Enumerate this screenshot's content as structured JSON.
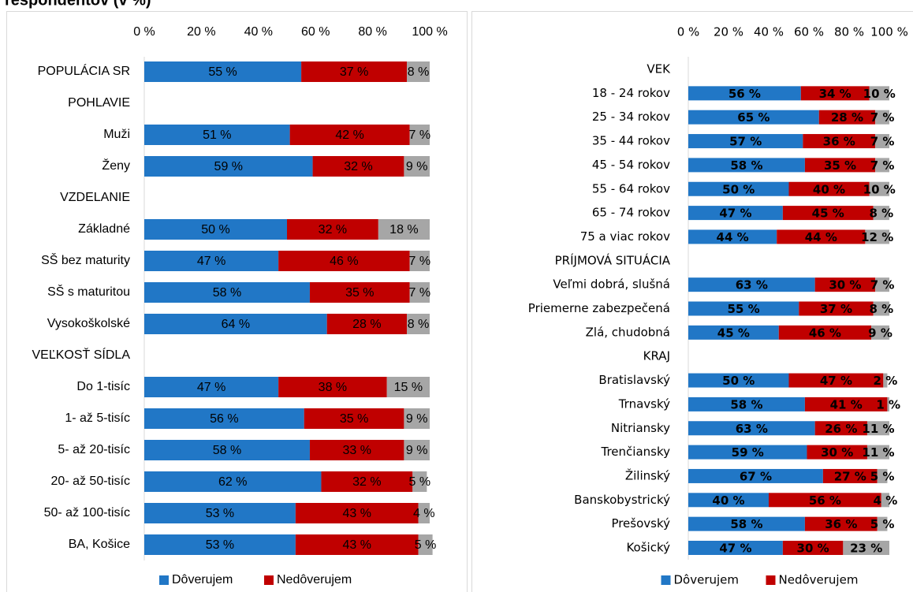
{
  "title": "respondentov (v %)",
  "chart_data": [
    {
      "type": "stacked-bar",
      "categories": [
        "POPULÁCIA SR",
        "POHLAVIE",
        "Muži",
        "Ženy",
        "VZDELANIE",
        "Základné",
        "SŠ bez maturity",
        "SŠ s maturitou",
        "Vysokoškolské",
        "VEĽKOSŤ SÍDLA",
        "Do 1-tisíc",
        "1- až 5-tisíc",
        "5- až 20-tisíc",
        "20- až 50-tisíc",
        "50- až 100-tisíc",
        "BA, Košice"
      ],
      "series": [
        {
          "name": "Dôverujem",
          "color": "#2177c6",
          "values": [
            55,
            null,
            51,
            59,
            null,
            50,
            47,
            58,
            64,
            null,
            47,
            56,
            58,
            62,
            53,
            53
          ],
          "value_labels": [
            "55 %",
            null,
            "51 %",
            "59 %",
            null,
            "50 %",
            "47 %",
            "58 %",
            "64 %",
            null,
            "47 %",
            "56 %",
            "58 %",
            "62 %",
            "53 %",
            "53 %"
          ]
        },
        {
          "name": "Nedôverujem",
          "color": "#c00000",
          "values": [
            37,
            null,
            42,
            32,
            null,
            32,
            46,
            35,
            28,
            null,
            38,
            35,
            33,
            32,
            43,
            43
          ],
          "value_labels": [
            "37 %",
            null,
            "42 %",
            "32 %",
            null,
            "32 %",
            "46 %",
            "35 %",
            "28 %",
            null,
            "38 %",
            "35 %",
            "33 %",
            "32 %",
            "43 %",
            "43 %"
          ]
        },
        {
          "color": "#a6a6a6",
          "values": [
            8,
            null,
            7,
            9,
            null,
            18,
            7,
            7,
            8,
            null,
            15,
            9,
            9,
            5,
            4,
            5
          ],
          "value_labels": [
            "8 %",
            null,
            "7 %",
            "9 %",
            null,
            "18 %",
            "7 %",
            "7 %",
            "8 %",
            null,
            "15 %",
            "9 %",
            "9 %",
            "5 %",
            "4 %",
            "5 %"
          ]
        }
      ],
      "xlim": [
        0,
        100
      ],
      "xticks": [
        {
          "value": 0,
          "label": "0 %"
        },
        {
          "value": 20,
          "label": "20 %"
        },
        {
          "value": 40,
          "label": "40 %"
        },
        {
          "value": 60,
          "label": "60 %"
        },
        {
          "value": 80,
          "label": "80 %"
        },
        {
          "value": 100,
          "label": "100 %"
        }
      ],
      "legend": "bottom"
    },
    {
      "type": "stacked-bar",
      "categories": [
        "VEK",
        "18 - 24 rokov",
        "25 - 34 rokov",
        "35 - 44 rokov",
        "45 - 54 rokov",
        "55 - 64 rokov",
        "65 - 74 rokov",
        "75 a viac rokov",
        "PRÍJMOVÁ SITUÁCIA",
        "Veľmi dobrá, slušná",
        "Priemerne zabezpečená",
        "Zlá, chudobná",
        "KRAJ",
        "Bratislavský",
        "Trnavský",
        "Nitriansky",
        "Trenčiansky",
        "Žilinský",
        "Banskobystrický",
        "Prešovský",
        "Košický"
      ],
      "series": [
        {
          "name": "Dôverujem",
          "color": "#2177c6",
          "values": [
            null,
            56,
            65,
            57,
            58,
            50,
            47,
            44,
            null,
            63,
            55,
            45,
            null,
            50,
            58,
            63,
            59,
            67,
            40,
            58,
            47
          ],
          "value_labels": [
            null,
            "56 %",
            "65 %",
            "57 %",
            "58 %",
            "50 %",
            "47 %",
            "44 %",
            null,
            "63 %",
            "55 %",
            "45 %",
            null,
            "50 %",
            "58 %",
            "63 %",
            "59 %",
            "67 %",
            "40 %",
            "58 %",
            "47 %"
          ]
        },
        {
          "name": "Nedôverujem",
          "color": "#c00000",
          "values": [
            null,
            34,
            28,
            36,
            35,
            40,
            45,
            44,
            null,
            30,
            37,
            46,
            null,
            47,
            41,
            26,
            30,
            27,
            56,
            36,
            30
          ],
          "value_labels": [
            null,
            "34 %",
            "28 %",
            "36 %",
            "35 %",
            "40 %",
            "45 %",
            "44 %",
            null,
            "30 %",
            "37 %",
            "46 %",
            null,
            "47 %",
            "41 %",
            "26 %",
            "30 %",
            "27 %",
            "56 %",
            "36 %",
            "30 %"
          ]
        },
        {
          "color": "#a6a6a6",
          "values": [
            null,
            10,
            7,
            7,
            7,
            10,
            8,
            12,
            null,
            7,
            8,
            9,
            null,
            2,
            1,
            11,
            11,
            5,
            4,
            5,
            23
          ],
          "value_labels": [
            null,
            "10 %",
            "7 %",
            "7 %",
            "7 %",
            "10 %",
            "8 %",
            "12 %",
            null,
            "7 %",
            "8 %",
            "9 %",
            null,
            "2 %",
            "1 %",
            "11 %",
            "11 %",
            "5 %",
            "4 %",
            "5 %",
            "23 %"
          ]
        }
      ],
      "xlim": [
        0,
        100
      ],
      "xticks": [
        {
          "value": 0,
          "label": "0 %"
        },
        {
          "value": 20,
          "label": "20 %"
        },
        {
          "value": 40,
          "label": "40 %"
        },
        {
          "value": 60,
          "label": "60 %"
        },
        {
          "value": 80,
          "label": "80 %"
        },
        {
          "value": 100,
          "label": "100 %"
        }
      ],
      "legend": "bottom"
    }
  ]
}
